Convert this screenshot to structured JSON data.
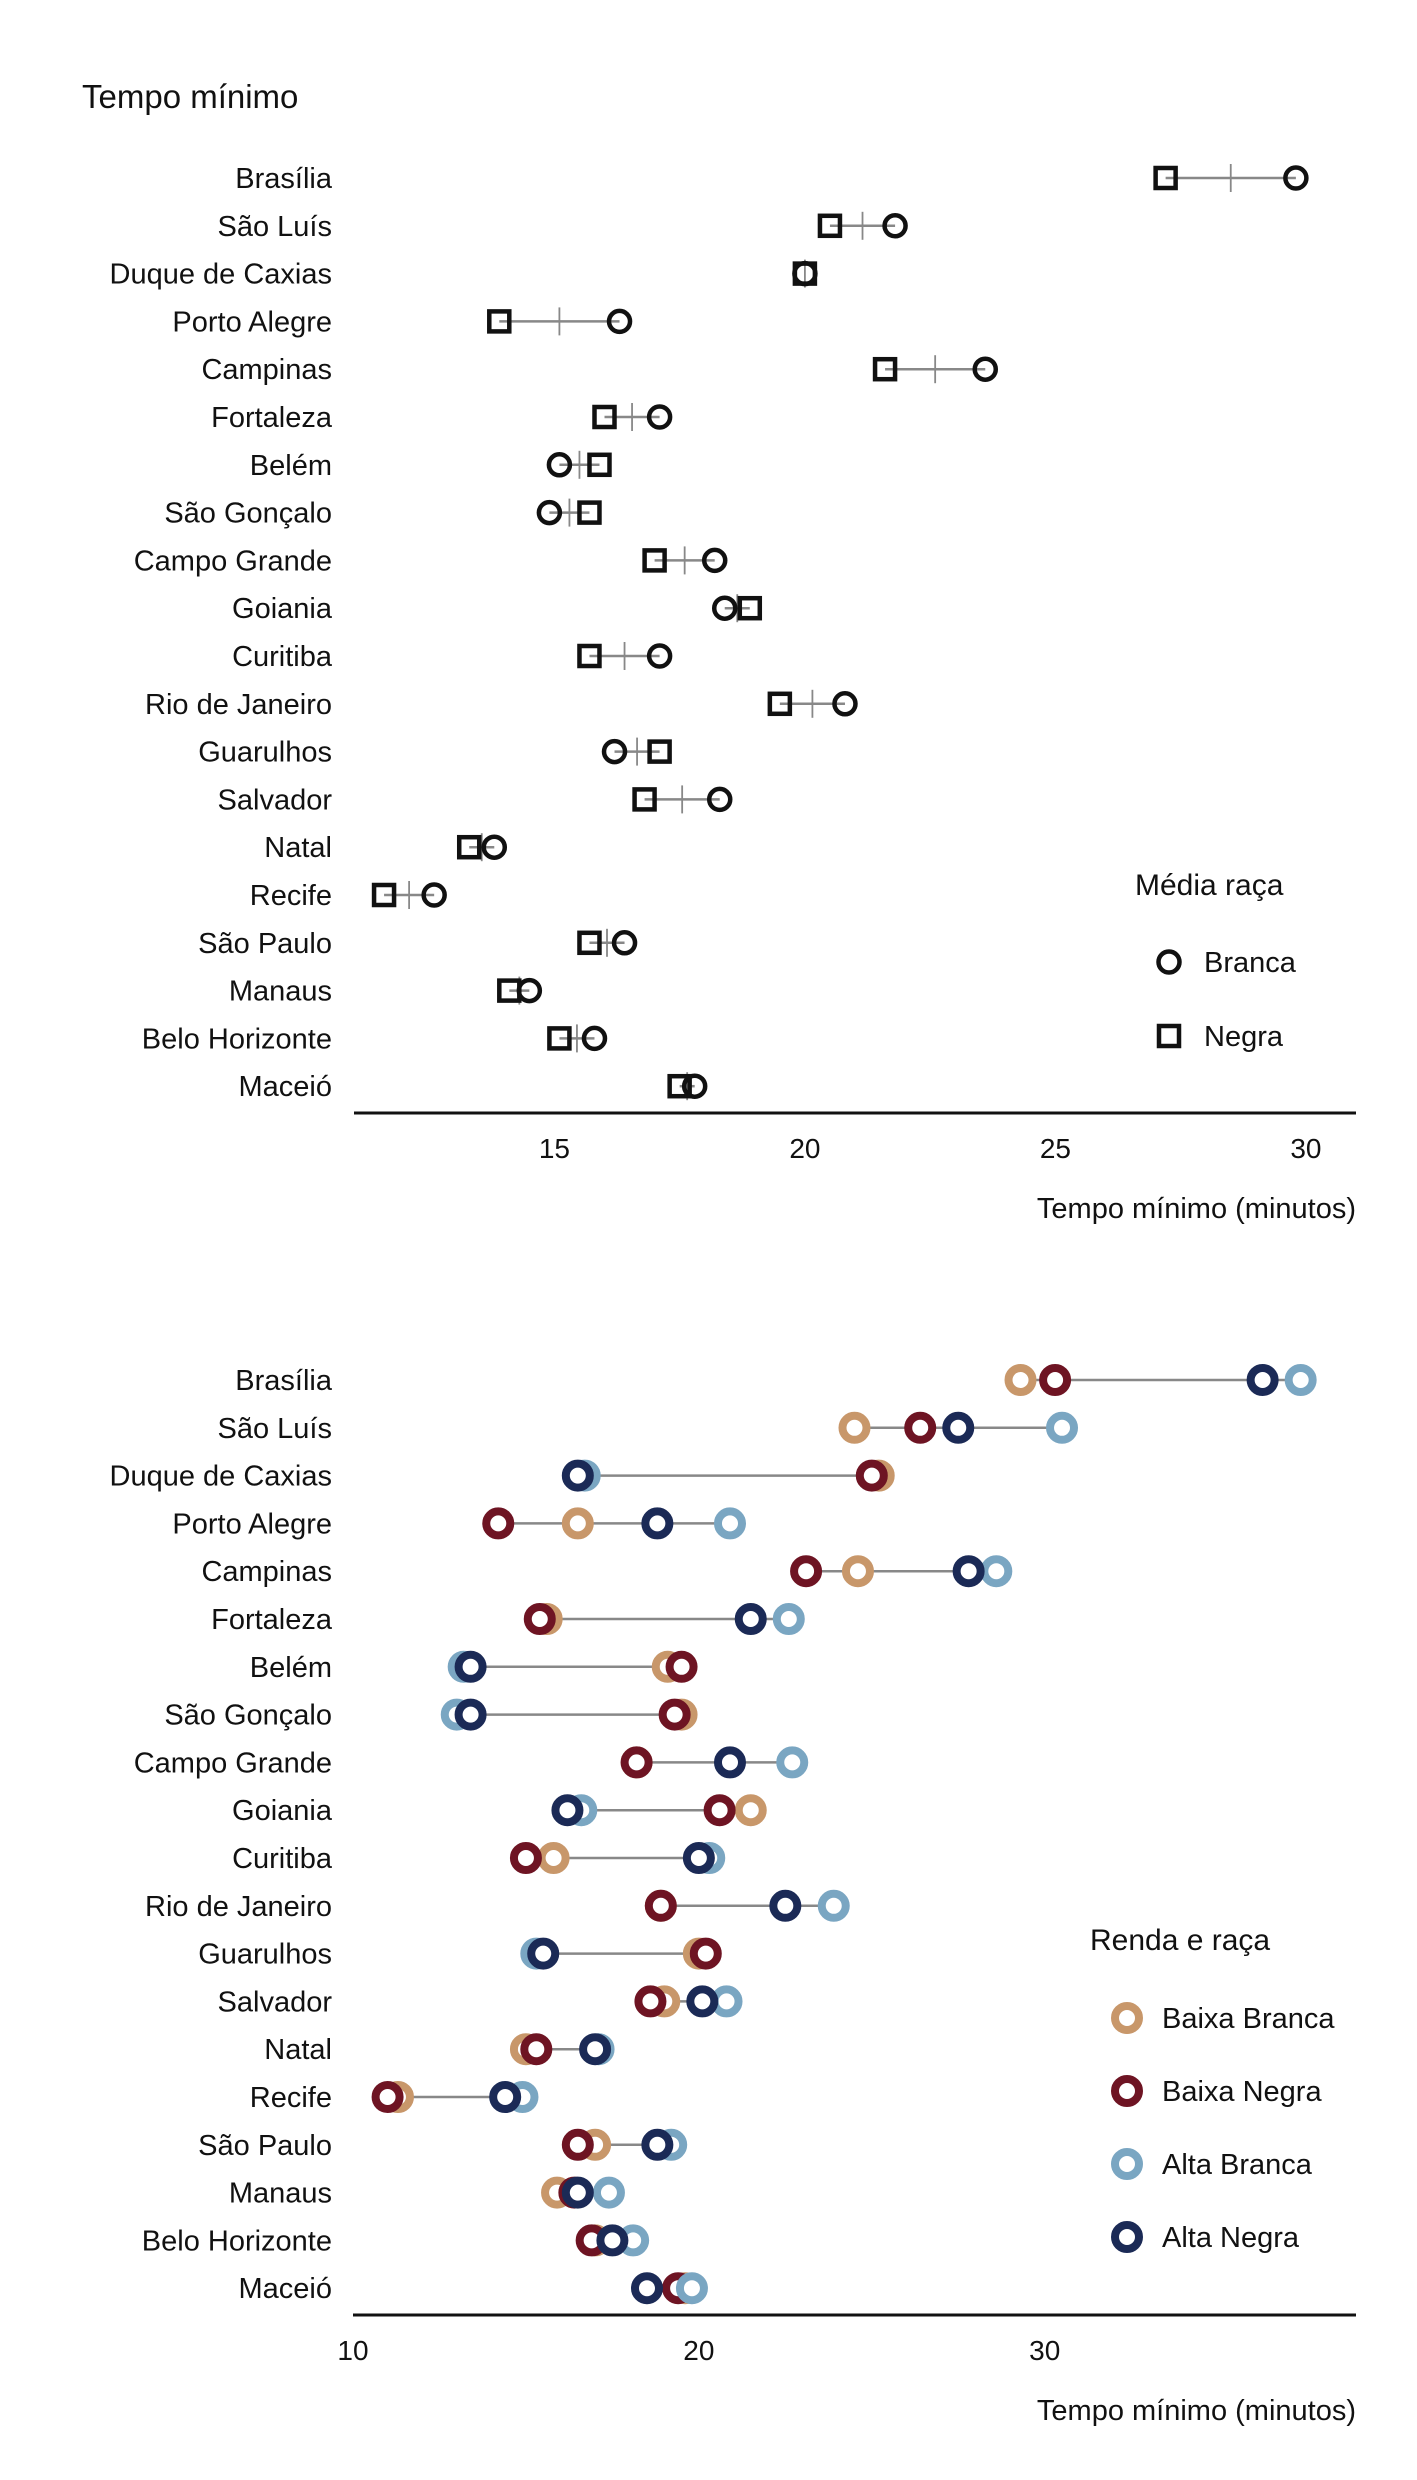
{
  "chart_data": [
    {
      "type": "dumbbell",
      "title": "Tempo mínimo",
      "xlabel": "Tempo mínimo (minutos)",
      "ylabel": "",
      "xlim": [
        11.0,
        31.0
      ],
      "xticks": [
        15,
        20,
        25,
        30
      ],
      "grid": false,
      "legend_placement": "right",
      "legend_title": "Média raça",
      "categories": [
        "Brasília",
        "São Luís",
        "Duque de Caxias",
        "Porto Alegre",
        "Campinas",
        "Fortaleza",
        "Belém",
        "São Gonçalo",
        "Campo Grande",
        "Goiania",
        "Curitiba",
        "Rio de Janeiro",
        "Guarulhos",
        "Salvador",
        "Natal",
        "Recife",
        "São Paulo",
        "Manaus",
        "Belo Horizonte",
        "Maceió"
      ],
      "series": [
        {
          "name": "Branca",
          "marker": "circle",
          "color": "#111111",
          "values": [
            29.8,
            21.8,
            20.0,
            16.3,
            23.6,
            17.1,
            15.1,
            14.9,
            18.2,
            18.4,
            17.1,
            20.8,
            16.2,
            18.3,
            13.8,
            12.6,
            16.4,
            14.5,
            15.8,
            17.8
          ]
        },
        {
          "name": "Negra",
          "marker": "square",
          "color": "#111111",
          "values": [
            27.2,
            20.5,
            20.0,
            13.9,
            21.6,
            16.0,
            15.9,
            15.7,
            17.0,
            18.9,
            15.7,
            19.5,
            17.1,
            16.8,
            13.3,
            11.6,
            15.7,
            14.1,
            15.1,
            17.5
          ]
        }
      ],
      "mean_tick_color": "#888888",
      "connector_color": "#888888"
    },
    {
      "type": "dumbbell",
      "title": "",
      "xlabel": "Tempo mínimo (minutos)",
      "ylabel": "",
      "xlim": [
        10.0,
        39.0
      ],
      "xticks": [
        10,
        20,
        30
      ],
      "grid": false,
      "legend_placement": "right",
      "legend_title": "Renda e raça",
      "categories": [
        "Brasília",
        "São Luís",
        "Duque de Caxias",
        "Porto Alegre",
        "Campinas",
        "Fortaleza",
        "Belém",
        "São Gonçalo",
        "Campo Grande",
        "Goiania",
        "Curitiba",
        "Rio de Janeiro",
        "Guarulhos",
        "Salvador",
        "Natal",
        "Recife",
        "São Paulo",
        "Manaus",
        "Belo Horizonte",
        "Maceió"
      ],
      "series": [
        {
          "name": "Baixa Branca",
          "marker": "ring",
          "color": "#c8976a",
          "values": [
            29.3,
            24.5,
            25.2,
            16.5,
            24.6,
            15.6,
            19.1,
            19.5,
            18.2,
            21.5,
            15.8,
            18.9,
            20.0,
            19.0,
            15.0,
            11.3,
            17.0,
            15.9,
            17.0,
            19.6
          ]
        },
        {
          "name": "Baixa Negra",
          "marker": "ring",
          "color": "#6e1423",
          "values": [
            30.3,
            26.4,
            25.0,
            14.2,
            23.1,
            15.4,
            19.5,
            19.3,
            18.2,
            20.6,
            15.0,
            18.9,
            20.2,
            18.6,
            15.3,
            11.0,
            16.5,
            16.4,
            16.9,
            19.4
          ]
        },
        {
          "name": "Alta Branca",
          "marker": "ring",
          "color": "#7aa6c2",
          "values": [
            37.4,
            30.5,
            16.7,
            20.9,
            28.6,
            22.6,
            13.2,
            13.0,
            22.7,
            16.6,
            20.3,
            23.9,
            15.3,
            20.8,
            17.1,
            14.9,
            19.2,
            17.4,
            18.1,
            19.8
          ]
        },
        {
          "name": "Alta Negra",
          "marker": "ring",
          "color": "#1b2a56",
          "values": [
            36.3,
            27.5,
            16.5,
            18.8,
            27.8,
            21.5,
            13.4,
            13.4,
            20.9,
            16.2,
            20.0,
            22.5,
            15.5,
            20.1,
            17.0,
            14.4,
            18.8,
            16.5,
            17.5,
            18.5
          ]
        }
      ],
      "connector_color": "#888888"
    }
  ]
}
